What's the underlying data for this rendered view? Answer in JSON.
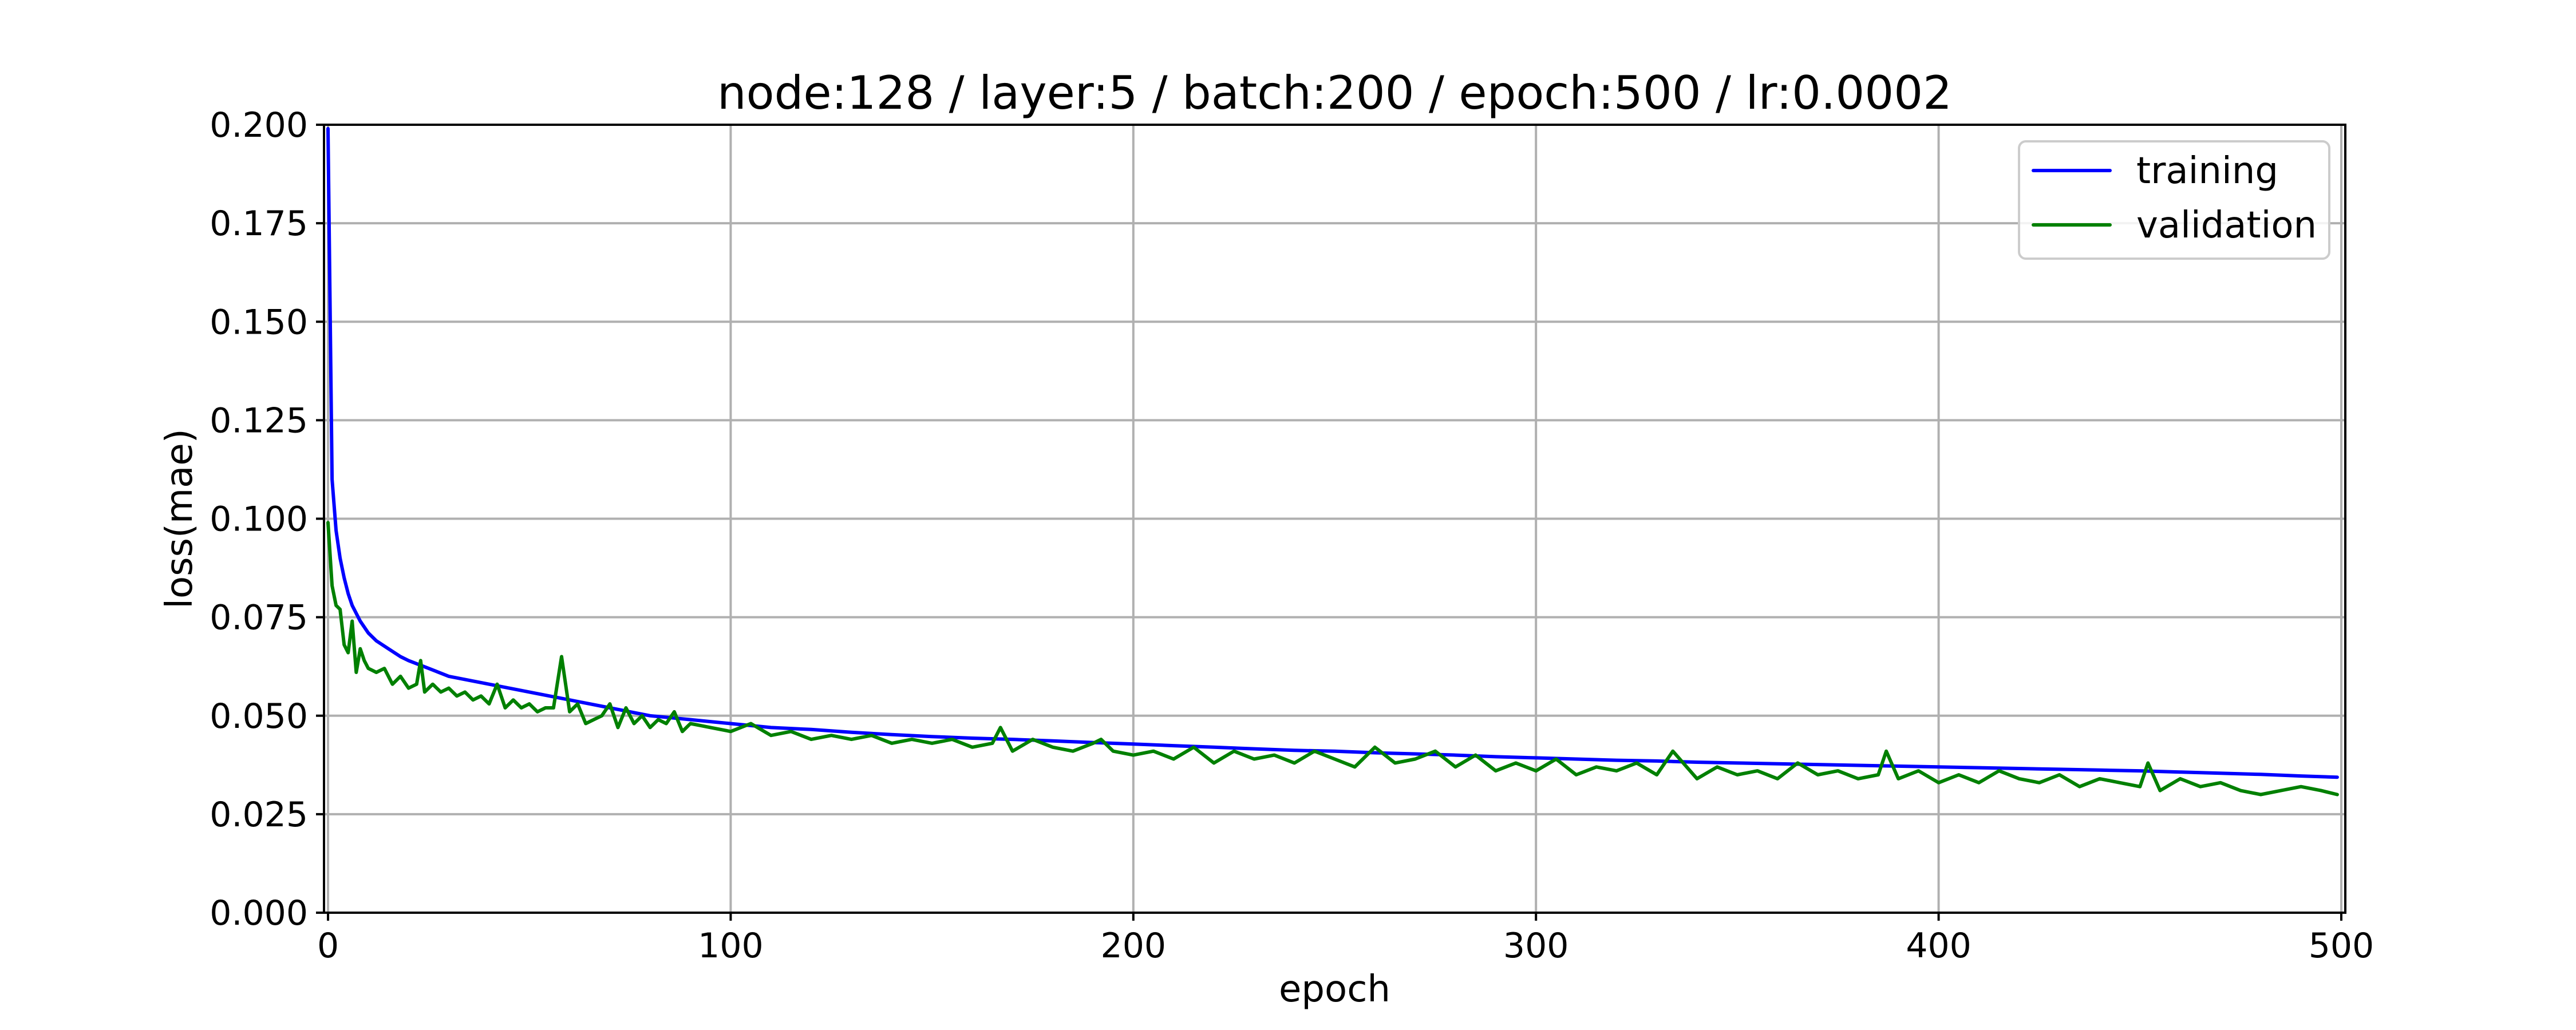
{
  "chart_data": {
    "type": "line",
    "title": "node:128 / layer:5 / batch:200 / epoch:500 / lr:0.0002",
    "xlabel": "epoch",
    "ylabel": "loss(mae)",
    "xlim": [
      -1,
      501
    ],
    "ylim": [
      0,
      0.2
    ],
    "xticks": [
      0,
      100,
      200,
      300,
      400,
      500
    ],
    "xtick_labels": [
      "0",
      "100",
      "200",
      "300",
      "400",
      "500"
    ],
    "yticks": [
      0,
      0.025,
      0.05,
      0.075,
      0.1,
      0.125,
      0.15,
      0.175,
      0.2
    ],
    "ytick_labels": [
      "0.000",
      "0.025",
      "0.050",
      "0.075",
      "0.100",
      "0.125",
      "0.150",
      "0.175",
      "0.200"
    ],
    "grid": true,
    "legend_position": "top-right",
    "series": [
      {
        "name": "training",
        "color": "#0000ff",
        "x": [
          0,
          1,
          2,
          3,
          4,
          5,
          6,
          8,
          10,
          12,
          15,
          18,
          20,
          25,
          30,
          35,
          40,
          45,
          50,
          55,
          60,
          65,
          70,
          75,
          80,
          85,
          90,
          95,
          100,
          110,
          120,
          130,
          140,
          150,
          160,
          170,
          180,
          190,
          200,
          210,
          220,
          230,
          240,
          250,
          260,
          270,
          280,
          290,
          300,
          310,
          320,
          330,
          340,
          350,
          360,
          370,
          380,
          390,
          400,
          410,
          420,
          430,
          440,
          450,
          460,
          470,
          480,
          490,
          499
        ],
        "values": [
          0.199,
          0.11,
          0.097,
          0.09,
          0.085,
          0.081,
          0.078,
          0.074,
          0.071,
          0.069,
          0.067,
          0.065,
          0.064,
          0.062,
          0.06,
          0.059,
          0.058,
          0.057,
          0.056,
          0.055,
          0.054,
          0.053,
          0.052,
          0.051,
          0.05,
          0.0495,
          0.049,
          0.0485,
          0.048,
          0.047,
          0.0465,
          0.0458,
          0.0452,
          0.0447,
          0.0443,
          0.044,
          0.0436,
          0.0432,
          0.0428,
          0.0424,
          0.042,
          0.0416,
          0.0412,
          0.041,
          0.0406,
          0.0403,
          0.04,
          0.0396,
          0.0393,
          0.039,
          0.0387,
          0.0385,
          0.0382,
          0.038,
          0.0378,
          0.0376,
          0.0374,
          0.0372,
          0.037,
          0.0368,
          0.0366,
          0.0364,
          0.0362,
          0.036,
          0.0357,
          0.0354,
          0.0351,
          0.0347,
          0.0344
        ]
      },
      {
        "name": "validation",
        "color": "#008000",
        "x": [
          0,
          1,
          2,
          3,
          4,
          5,
          6,
          7,
          8,
          9,
          10,
          12,
          14,
          16,
          18,
          20,
          22,
          23,
          24,
          26,
          28,
          30,
          32,
          34,
          36,
          38,
          40,
          42,
          44,
          46,
          48,
          50,
          52,
          54,
          56,
          58,
          60,
          62,
          64,
          66,
          68,
          70,
          72,
          74,
          76,
          78,
          80,
          82,
          84,
          86,
          88,
          90,
          95,
          100,
          105,
          110,
          115,
          120,
          125,
          130,
          135,
          140,
          145,
          150,
          155,
          160,
          165,
          167,
          170,
          175,
          180,
          185,
          190,
          192,
          195,
          200,
          205,
          210,
          215,
          220,
          225,
          230,
          235,
          240,
          245,
          250,
          255,
          260,
          265,
          270,
          275,
          280,
          285,
          290,
          295,
          300,
          305,
          310,
          315,
          320,
          325,
          330,
          334,
          340,
          345,
          350,
          355,
          360,
          365,
          370,
          375,
          380,
          385,
          387,
          390,
          395,
          400,
          405,
          410,
          415,
          420,
          425,
          430,
          435,
          440,
          445,
          450,
          452,
          455,
          460,
          465,
          470,
          475,
          480,
          485,
          490,
          495,
          499
        ],
        "values": [
          0.099,
          0.083,
          0.078,
          0.077,
          0.068,
          0.066,
          0.074,
          0.061,
          0.067,
          0.064,
          0.062,
          0.061,
          0.062,
          0.058,
          0.06,
          0.057,
          0.058,
          0.064,
          0.056,
          0.058,
          0.056,
          0.057,
          0.055,
          0.056,
          0.054,
          0.055,
          0.053,
          0.058,
          0.052,
          0.054,
          0.052,
          0.053,
          0.051,
          0.052,
          0.052,
          0.065,
          0.051,
          0.053,
          0.048,
          0.049,
          0.05,
          0.053,
          0.047,
          0.052,
          0.048,
          0.05,
          0.047,
          0.049,
          0.048,
          0.051,
          0.046,
          0.048,
          0.047,
          0.046,
          0.048,
          0.045,
          0.046,
          0.044,
          0.045,
          0.044,
          0.045,
          0.043,
          0.044,
          0.043,
          0.044,
          0.042,
          0.043,
          0.047,
          0.041,
          0.044,
          0.042,
          0.041,
          0.043,
          0.044,
          0.041,
          0.04,
          0.041,
          0.039,
          0.042,
          0.038,
          0.041,
          0.039,
          0.04,
          0.038,
          0.041,
          0.039,
          0.037,
          0.042,
          0.038,
          0.039,
          0.041,
          0.037,
          0.04,
          0.036,
          0.038,
          0.036,
          0.039,
          0.035,
          0.037,
          0.036,
          0.038,
          0.035,
          0.041,
          0.034,
          0.037,
          0.035,
          0.036,
          0.034,
          0.038,
          0.035,
          0.036,
          0.034,
          0.035,
          0.041,
          0.034,
          0.036,
          0.033,
          0.035,
          0.033,
          0.036,
          0.034,
          0.033,
          0.035,
          0.032,
          0.034,
          0.033,
          0.032,
          0.038,
          0.031,
          0.034,
          0.032,
          0.033,
          0.031,
          0.03,
          0.031,
          0.032,
          0.031,
          0.03
        ]
      }
    ]
  }
}
